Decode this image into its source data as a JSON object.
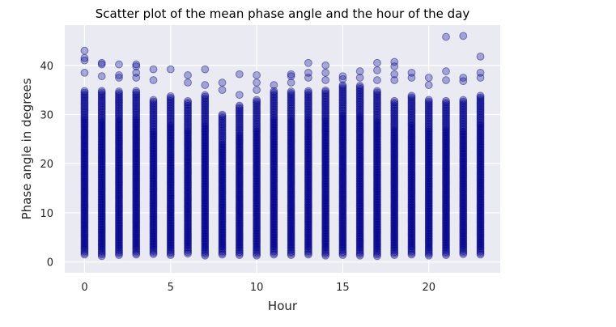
{
  "chart_data": {
    "type": "scatter",
    "title": "Scatter plot of the mean phase angle and the hour of the day",
    "xlabel": "Hour",
    "ylabel": "Phase angle in degrees",
    "xlim": [
      -1.15,
      24.15
    ],
    "ylim": [
      -2.2,
      48.2
    ],
    "xticks": [
      0,
      5,
      10,
      15,
      20
    ],
    "yticks": [
      0,
      10,
      20,
      30,
      40
    ],
    "grid": true,
    "legend": "none",
    "marker_color": "#00008b",
    "marker_alpha": 0.3,
    "background": "#eaeaf2",
    "series": [
      {
        "x": [
          0,
          1,
          2,
          3,
          4,
          5,
          6,
          7,
          8,
          9,
          10,
          11,
          12,
          13,
          14,
          15,
          16,
          17,
          18,
          19,
          20,
          21,
          22,
          23
        ],
        "y_min": [
          1.5,
          1.2,
          1.4,
          1.5,
          1.6,
          1.4,
          1.7,
          1.3,
          1.5,
          1.4,
          1.3,
          1.5,
          1.4,
          1.5,
          1.3,
          1.4,
          1.3,
          1.2,
          1.4,
          1.5,
          1.3,
          1.4,
          1.6,
          1.5
        ],
        "y_dense_max": [
          35,
          35,
          35,
          35,
          33,
          34,
          33,
          34,
          30,
          32,
          33,
          35,
          35,
          35,
          35,
          36,
          36,
          35,
          33,
          34,
          33,
          33,
          33,
          34
        ],
        "y_outliers": [
          [
            43,
            41.5,
            41,
            38.5
          ],
          [
            40.5,
            40.2,
            37.8
          ],
          [
            40.2,
            38,
            37.5
          ],
          [
            40.2,
            39.8,
            38.5,
            37.5
          ],
          [
            39.2,
            37
          ],
          [
            39.2
          ],
          [
            38,
            36.5
          ],
          [
            39.2,
            36
          ],
          [
            36.5,
            35
          ],
          [
            38.2,
            34
          ],
          [
            38,
            36.5,
            35
          ],
          [
            36
          ],
          [
            38.2,
            37.8,
            36.5
          ],
          [
            40.5,
            38.5,
            37.5
          ],
          [
            40,
            38.5,
            37
          ],
          [
            37.8,
            37.2
          ],
          [
            38.8,
            37.5
          ],
          [
            40.5,
            39,
            37
          ],
          [
            40.7,
            39.8,
            38.2,
            37
          ],
          [
            38.5,
            37.5
          ],
          [
            37.5,
            36
          ],
          [
            45.8,
            38.8,
            37
          ],
          [
            46,
            37.5,
            36.8
          ],
          [
            41.8,
            38.5,
            37.5
          ]
        ]
      }
    ]
  }
}
